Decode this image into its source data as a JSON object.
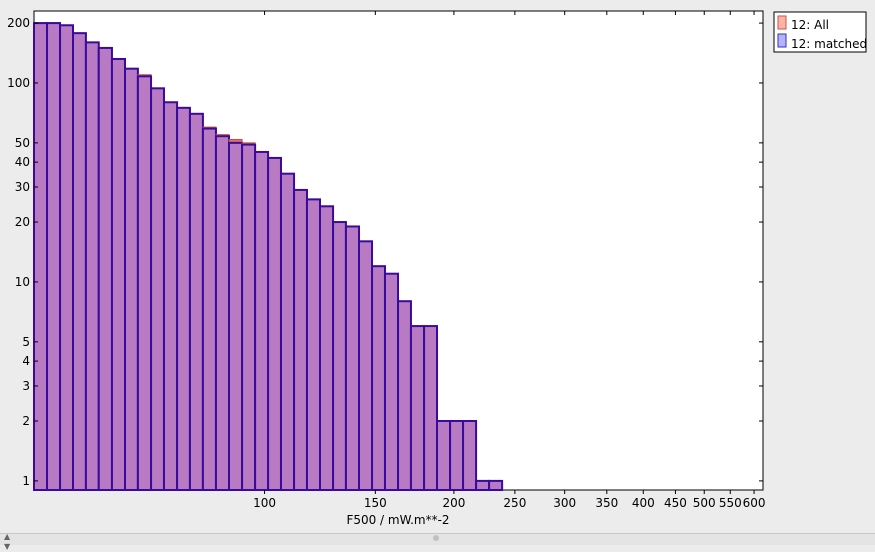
{
  "chart_data": {
    "type": "bar",
    "xlabel": "F500 / mW.m**-2",
    "ylabel": "",
    "x_scale": "log",
    "y_scale": "log",
    "xlim": [
      43,
      620
    ],
    "ylim": [
      0.9,
      230
    ],
    "x_ticks": [
      100,
      150,
      200,
      250,
      300,
      350,
      400,
      450,
      500,
      550,
      600
    ],
    "y_ticks": [
      1,
      2,
      3,
      4,
      5,
      10,
      20,
      30,
      40,
      50,
      100,
      200
    ],
    "bin_edges": [
      43.0,
      45.1,
      47.3,
      49.6,
      52.0,
      54.5,
      57.2,
      60.0,
      62.9,
      66.0,
      69.2,
      72.6,
      76.1,
      79.8,
      83.7,
      87.8,
      92.1,
      96.6,
      101.3,
      106.2,
      111.4,
      116.8,
      122.5,
      128.5,
      134.7,
      141.3,
      148.2,
      155.4,
      163.0,
      170.9,
      179.3,
      188.0,
      197.2,
      206.8,
      216.9,
      227.5,
      238.6,
      250.2,
      262.4,
      275.2,
      288.6,
      302.7,
      317.5,
      333.0,
      349.2,
      366.2,
      384.1,
      402.8,
      422.4,
      443.0,
      464.6,
      487.3,
      511.1,
      536.0,
      562.1,
      589.5,
      618.3
    ],
    "series": [
      {
        "name": "12: All",
        "color": "#ff9999",
        "values": [
          200,
          200,
          195,
          178,
          160,
          150,
          132,
          118,
          110,
          94,
          80,
          75,
          70,
          60,
          55,
          52,
          50,
          45,
          42,
          35,
          29,
          26,
          24,
          20,
          19,
          16,
          12,
          11,
          8,
          6,
          6,
          2,
          2,
          2,
          1,
          1
        ]
      },
      {
        "name": "12: matched",
        "color": "#9999ff",
        "values": [
          200,
          200,
          195,
          178,
          160,
          150,
          132,
          118,
          108,
          94,
          80,
          75,
          70,
          59,
          54,
          50,
          49,
          45,
          42,
          35,
          29,
          26,
          24,
          20,
          19,
          16,
          12,
          11,
          8,
          6,
          6,
          2,
          2,
          2,
          1,
          1
        ]
      }
    ],
    "legend_position": "top-right"
  },
  "colors": {
    "overlap_fill": "#b87ac2",
    "all_top": "#e07060",
    "bar_stroke": "#3a0a9a"
  },
  "status_bar": {
    "resize_icon": "up-down-arrows"
  }
}
